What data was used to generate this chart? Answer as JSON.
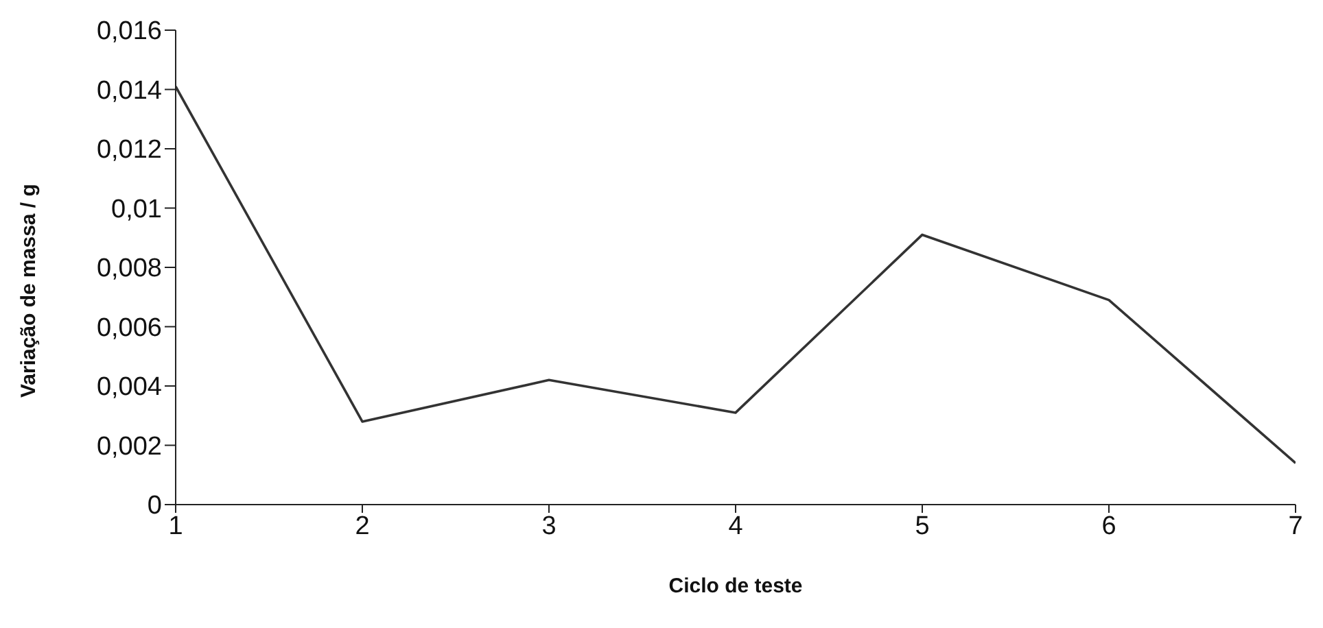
{
  "chart_data": {
    "type": "line",
    "xlabel": "Ciclo de teste",
    "ylabel": "Variação de massa / g",
    "x": [
      1,
      2,
      3,
      4,
      5,
      6,
      7
    ],
    "series": [
      {
        "color": "#333333",
        "values": [
          0.0141,
          0.0028,
          0.0042,
          0.0031,
          0.0091,
          0.0069,
          0.0014
        ]
      }
    ],
    "xlim": [
      1,
      7
    ],
    "xticks": [
      1,
      2,
      3,
      4,
      5,
      6,
      7
    ],
    "ylim": [
      0,
      0.016
    ],
    "yticks": [
      0,
      {
        "value": 0.002,
        "label": "0,002"
      },
      {
        "value": 0.004,
        "label": "0,004"
      },
      {
        "value": 0.006,
        "label": "0,006"
      },
      {
        "value": 0.008,
        "label": "0,008"
      },
      {
        "value": 0.01,
        "label": "0,01"
      },
      {
        "value": 0.012,
        "label": "0,012"
      },
      {
        "value": 0.014,
        "label": "0,014"
      },
      {
        "value": 0.016,
        "label": "0,016"
      }
    ],
    "grid": false,
    "legend": false,
    "marker": "none",
    "line_style": "solid"
  }
}
